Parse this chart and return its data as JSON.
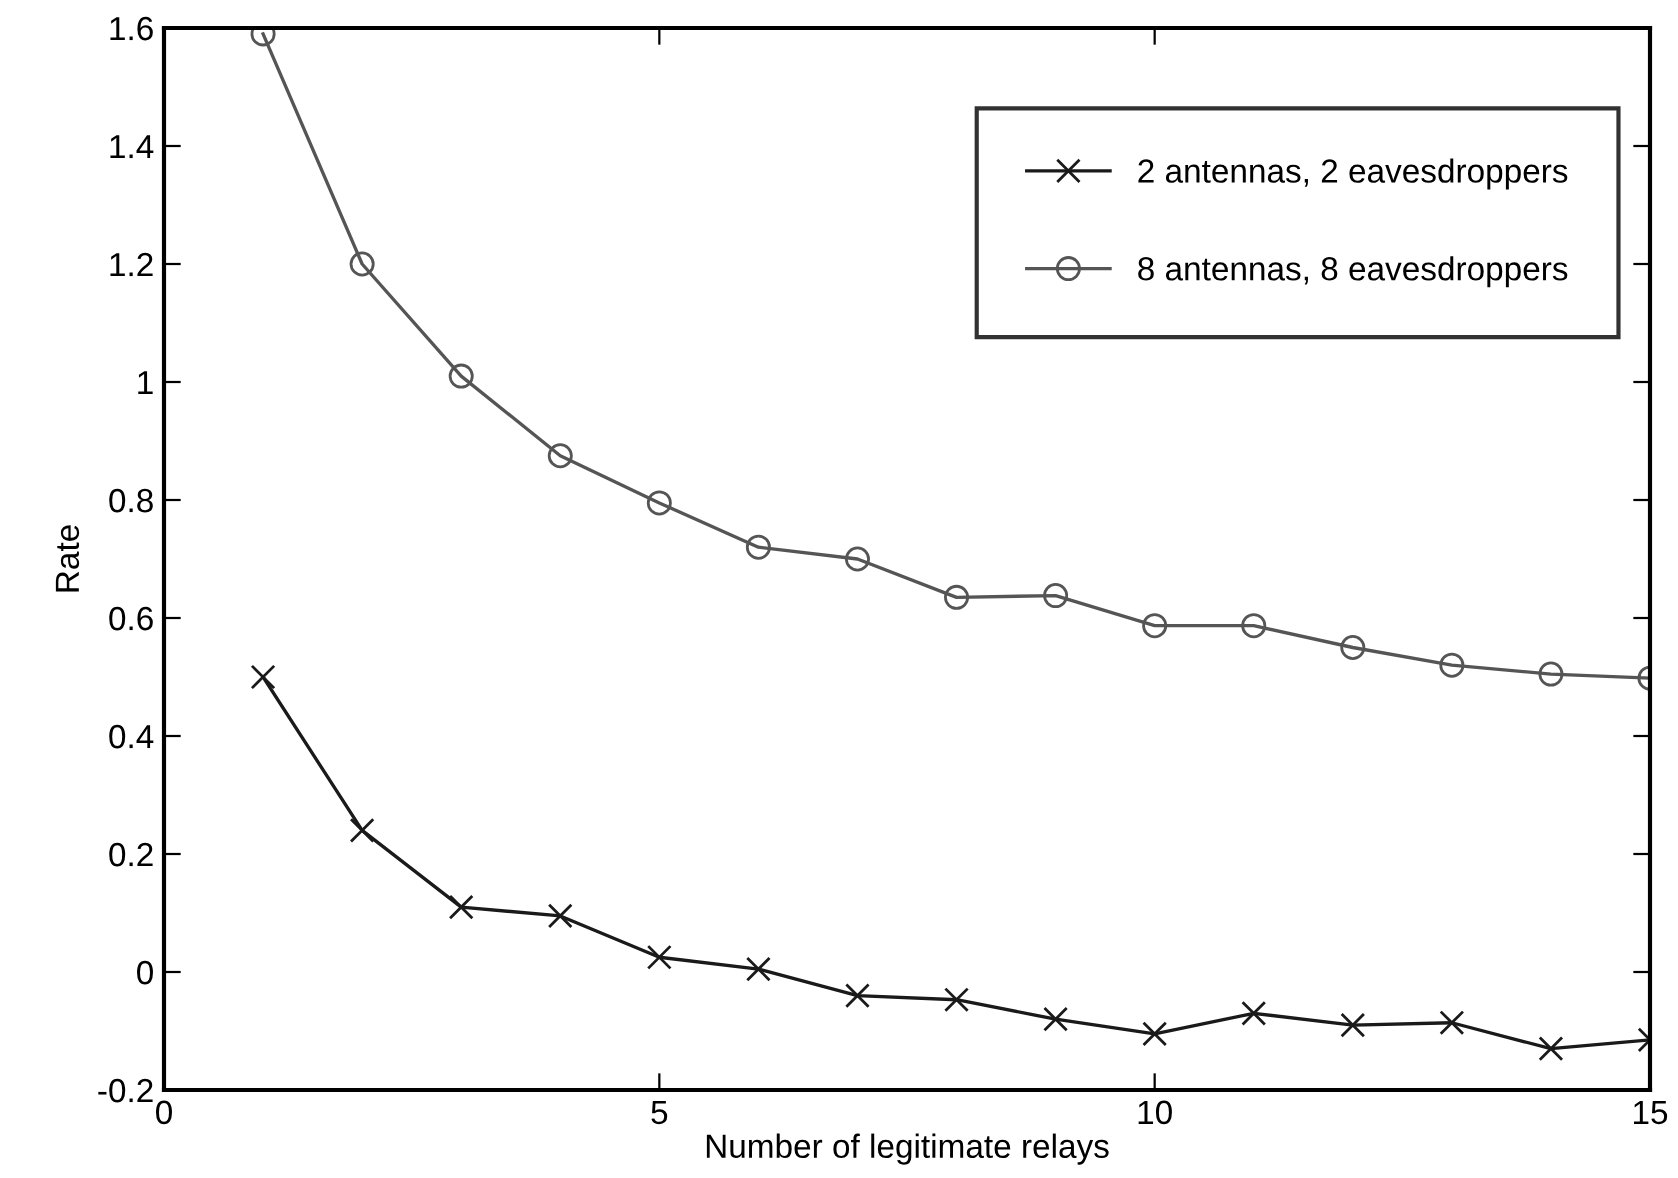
{
  "chart_data": {
    "type": "line",
    "xlabel": "Number of legitimate relays",
    "ylabel": "Rate",
    "x": [
      1,
      2,
      3,
      4,
      5,
      6,
      7,
      8,
      9,
      10,
      11,
      12,
      13,
      14,
      15
    ],
    "series": [
      {
        "name": "2 antennas, 2 eavesdroppers",
        "color": "#1a1a1a",
        "marker": "cross",
        "values": [
          0.5,
          0.24,
          0.11,
          0.095,
          0.025,
          0.005,
          -0.04,
          -0.047,
          -0.08,
          -0.105,
          -0.07,
          -0.09,
          -0.086,
          -0.13,
          -0.115
        ]
      },
      {
        "name": "8 antennas, 8 eavesdroppers",
        "color": "#555555",
        "marker": "circle",
        "values": [
          1.59,
          1.2,
          1.01,
          0.875,
          0.795,
          0.72,
          0.7,
          0.635,
          0.638,
          0.587,
          0.587,
          0.55,
          0.52,
          0.505,
          0.498
        ]
      }
    ],
    "xlim": [
      0,
      15
    ],
    "xticks": [
      0,
      5,
      10,
      15
    ],
    "ylim": [
      -0.2,
      1.6
    ],
    "yticks": [
      -0.2,
      0,
      0.2,
      0.4,
      0.6,
      0.8,
      1,
      1.2,
      1.4,
      1.6
    ],
    "grid": false,
    "legend": "top right",
    "line_style": "solid"
  }
}
